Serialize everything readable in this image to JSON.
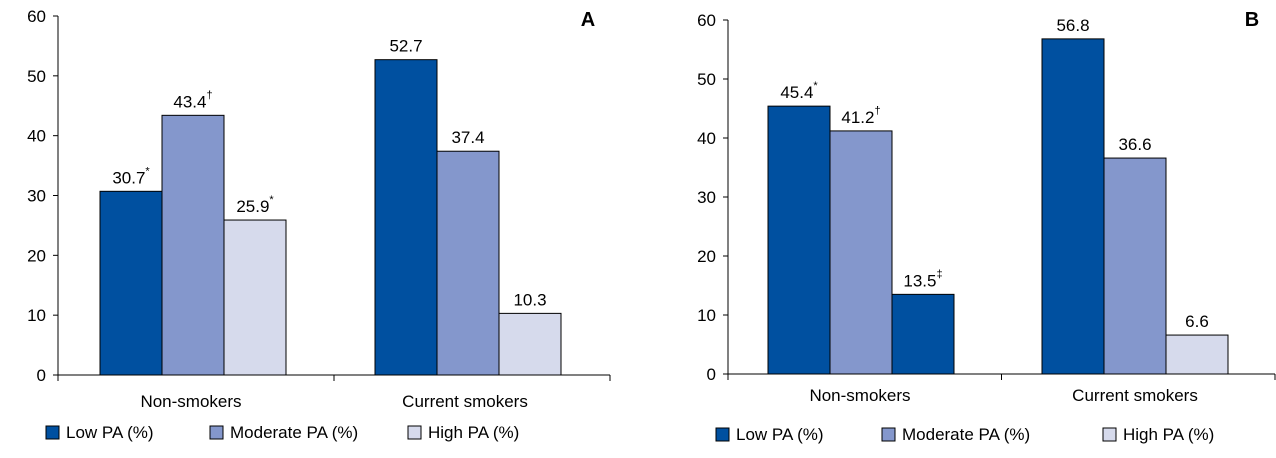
{
  "colors": {
    "low_pa": "#0050A0",
    "moderate_pa": "#8497CC",
    "high_pa": "#D6DAEC"
  },
  "legend": [
    {
      "key": "low_pa",
      "label": "Low PA (%)"
    },
    {
      "key": "moderate_pa",
      "label": "Moderate PA (%)"
    },
    {
      "key": "high_pa",
      "label": "High PA (%)"
    }
  ],
  "chart_data": [
    {
      "type": "bar",
      "panel_label": "A",
      "categories": [
        "Non-smokers",
        "Current smokers"
      ],
      "ylim": [
        0,
        60
      ],
      "yticks": [
        "0",
        "10",
        "20",
        "30",
        "40",
        "50",
        "60"
      ],
      "grid": false,
      "legend_position": "bottom",
      "series": [
        {
          "name": "Low PA (%)",
          "color_key": "low_pa",
          "values": [
            30.7,
            52.7
          ],
          "labels": [
            "30.7",
            "52.7"
          ],
          "marks": [
            "*",
            ""
          ]
        },
        {
          "name": "Moderate PA (%)",
          "color_key": "moderate_pa",
          "values": [
            43.4,
            37.4
          ],
          "labels": [
            "43.4",
            "37.4"
          ],
          "marks": [
            "†",
            ""
          ]
        },
        {
          "name": "High PA (%)",
          "color_key": "high_pa",
          "values": [
            25.9,
            10.3
          ],
          "labels": [
            "25.9",
            "10.3"
          ],
          "marks": [
            "*",
            ""
          ]
        }
      ]
    },
    {
      "type": "bar",
      "panel_label": "B",
      "categories": [
        "Non-smokers",
        "Current smokers"
      ],
      "ylim": [
        0,
        60
      ],
      "yticks": [
        "0",
        "10",
        "20",
        "30",
        "40",
        "50",
        "60"
      ],
      "grid": false,
      "legend_position": "bottom",
      "series": [
        {
          "name": "Low PA (%)",
          "color_key": "low_pa",
          "values": [
            45.4,
            56.8
          ],
          "labels": [
            "45.4",
            "56.8"
          ],
          "marks": [
            "*",
            ""
          ]
        },
        {
          "name": "Moderate PA (%)",
          "color_key": "moderate_pa",
          "values": [
            41.2,
            36.6
          ],
          "labels": [
            "41.2",
            "36.6"
          ],
          "marks": [
            "†",
            ""
          ]
        },
        {
          "name": "High PA (%)",
          "color_key": "low_pa",
          "values": [
            13.5,
            6.6
          ],
          "labels": [
            "13.5",
            "6.6"
          ],
          "marks": [
            "‡",
            ""
          ],
          "bar_color_keys": [
            "low_pa",
            "high_pa"
          ]
        }
      ]
    }
  ]
}
